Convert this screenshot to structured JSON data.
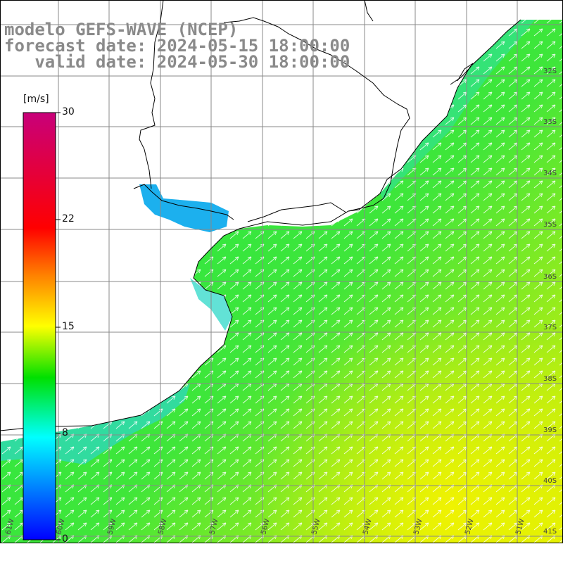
{
  "title": {
    "line1": "modelo GEFS-WAVE (NCEP)",
    "line2": "forecast date: 2024-05-15 18:00:00",
    "line3": "   valid date: 2024-05-30 18:00:00"
  },
  "colorbar": {
    "units": "[m/s]",
    "ticks": [
      "30",
      "22",
      "15",
      "8",
      "0"
    ],
    "colors": [
      "#c8007a",
      "#ff0000",
      "#ff8000",
      "#ffff00",
      "#00e000",
      "#00ffff",
      "#0000ff"
    ]
  },
  "axes": {
    "lat_labels": [
      "32S",
      "33S",
      "34S",
      "35S",
      "36S",
      "37S",
      "38S",
      "39S",
      "40S",
      "41S"
    ],
    "lon_labels": [
      "61W",
      "60W",
      "59W",
      "58W",
      "57W",
      "56W",
      "55W",
      "54W",
      "53W",
      "52W",
      "51W"
    ]
  },
  "colors": {
    "land": "#ffffff",
    "coast": "#000000",
    "grid": "#888888",
    "vector": "#ffffff"
  }
}
